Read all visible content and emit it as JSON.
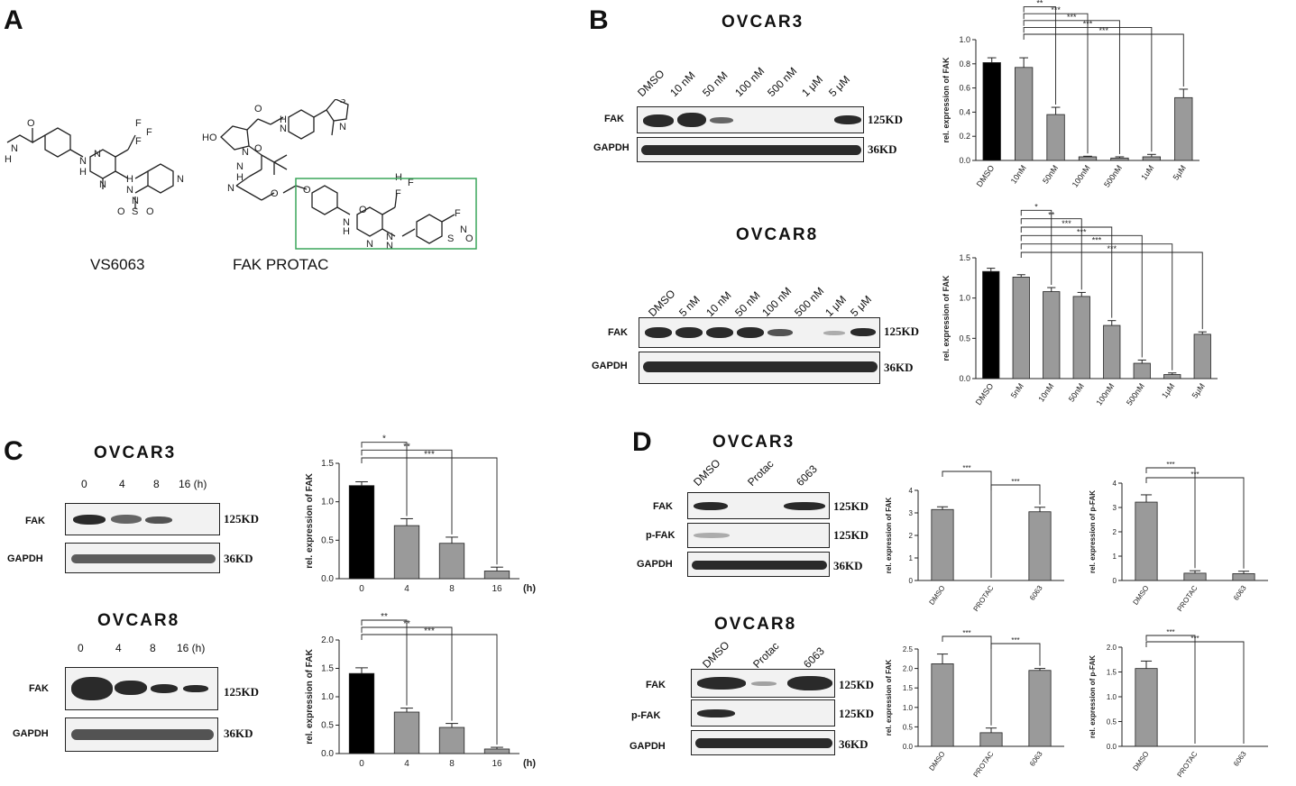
{
  "panels": {
    "A": {
      "letter": "A",
      "compounds": [
        {
          "name": "VS6063"
        },
        {
          "name": "FAK PROTAC"
        }
      ],
      "atom_labels": [
        "O",
        "N",
        "H",
        "N",
        "H",
        "N",
        "N",
        "H",
        "N",
        "F",
        "F",
        "F",
        "N",
        "N",
        "O",
        "S",
        "O",
        "HO",
        "O",
        "H",
        "N",
        "N",
        "S",
        "N",
        "N",
        "O",
        "H",
        "N",
        "O",
        "O",
        "O",
        "N",
        "N",
        "H",
        "N",
        "N",
        "H",
        "F",
        "F",
        "F",
        "N",
        "S",
        "O",
        "O"
      ]
    },
    "B": {
      "letter": "B",
      "ovcar3_title": "OVCAR3",
      "ovcar8_title": "OVCAR8",
      "ovcar3_lanes": [
        "DMSO",
        "10 nM",
        "50 nM",
        "100 nM",
        "500 nM",
        "1 μM",
        "5 μM"
      ],
      "ovcar8_lanes": [
        "DMSO",
        "5 nM",
        "10 nM",
        "50 nM",
        "100 nM",
        "500 nM",
        "1 μM",
        "5 μM"
      ],
      "rows": [
        "FAK",
        "GAPDH"
      ],
      "kd": [
        "125KD",
        "36KD"
      ]
    },
    "C": {
      "letter": "C",
      "ovcar3_title": "OVCAR3",
      "ovcar8_title": "OVCAR8",
      "lanes": [
        "0",
        "4",
        "8",
        "16 (h)"
      ],
      "rows": [
        "FAK",
        "GAPDH"
      ],
      "kd": [
        "125KD",
        "36KD"
      ]
    },
    "D": {
      "letter": "D",
      "ovcar3_title": "OVCAR3",
      "ovcar8_title": "OVCAR8",
      "lanes": [
        "DMSO",
        "Protac",
        "6063"
      ],
      "rows": [
        "FAK",
        "p-FAK",
        "GAPDH"
      ],
      "kd": [
        "125KD",
        "125KD",
        "36KD"
      ]
    }
  },
  "chart_data": [
    {
      "id": "B-ovcar3",
      "type": "bar",
      "categories": [
        "DMSO",
        "10nM",
        "50nM",
        "100nM",
        "500nM",
        "1uM",
        "5μM"
      ],
      "values": [
        0.81,
        0.77,
        0.38,
        0.03,
        0.02,
        0.03,
        0.52
      ],
      "errors": [
        0.04,
        0.08,
        0.06,
        0.005,
        0.01,
        0.02,
        0.07
      ],
      "colors": [
        "#000000",
        "#9a9a9a",
        "#9a9a9a",
        "#9a9a9a",
        "#9a9a9a",
        "#9a9a9a",
        "#9a9a9a"
      ],
      "ylabel": "rel. expression of FAK",
      "xlabel": "",
      "ylim": [
        0,
        1.0
      ],
      "yticks": [
        "0.0",
        "0.2",
        "0.4",
        "0.6",
        "0.8",
        "1.0"
      ],
      "significance": [
        [
          "**",
          1,
          2
        ],
        [
          "***",
          1,
          3
        ],
        [
          "***",
          1,
          4
        ],
        [
          "***",
          1,
          5
        ],
        [
          "***",
          1,
          6
        ]
      ],
      "xtick_rotate": true
    },
    {
      "id": "B-ovcar8",
      "type": "bar",
      "categories": [
        "DMSO",
        "5nM",
        "10nM",
        "50nM",
        "100nM",
        "500nM",
        "1μM",
        "5μM"
      ],
      "values": [
        1.33,
        1.26,
        1.08,
        1.02,
        0.66,
        0.19,
        0.05,
        0.55
      ],
      "errors": [
        0.04,
        0.03,
        0.05,
        0.05,
        0.06,
        0.04,
        0.02,
        0.03
      ],
      "colors": [
        "#000000",
        "#9a9a9a",
        "#9a9a9a",
        "#9a9a9a",
        "#9a9a9a",
        "#9a9a9a",
        "#9a9a9a",
        "#9a9a9a"
      ],
      "ylabel": "rel. expression of FAK",
      "xlabel": "",
      "ylim": [
        0,
        1.5
      ],
      "yticks": [
        "0.0",
        "0.5",
        "1.0",
        "1.5"
      ],
      "significance": [
        [
          "*",
          1,
          2
        ],
        [
          "**",
          1,
          3
        ],
        [
          "***",
          1,
          4
        ],
        [
          "***",
          1,
          5
        ],
        [
          "***",
          1,
          6
        ],
        [
          "***",
          1,
          7
        ]
      ],
      "xtick_rotate": true
    },
    {
      "id": "C-ovcar3",
      "type": "bar",
      "categories": [
        "0",
        "4",
        "8",
        "16"
      ],
      "values": [
        1.21,
        0.69,
        0.46,
        0.1
      ],
      "errors": [
        0.05,
        0.09,
        0.08,
        0.05
      ],
      "colors": [
        "#000000",
        "#9a9a9a",
        "#9a9a9a",
        "#9a9a9a"
      ],
      "ylabel": "rel. expression of FAK",
      "xlabel": "(h)",
      "ylim": [
        0,
        1.5
      ],
      "yticks": [
        "0.0",
        "0.5",
        "1.0",
        "1.5"
      ],
      "significance": [
        [
          "*",
          0,
          1
        ],
        [
          "**",
          0,
          2
        ],
        [
          "***",
          0,
          3
        ]
      ],
      "xtick_rotate": false
    },
    {
      "id": "C-ovcar8",
      "type": "bar",
      "categories": [
        "0",
        "4",
        "8",
        "16"
      ],
      "values": [
        1.41,
        0.73,
        0.46,
        0.08
      ],
      "errors": [
        0.1,
        0.07,
        0.07,
        0.03
      ],
      "colors": [
        "#000000",
        "#9a9a9a",
        "#9a9a9a",
        "#9a9a9a"
      ],
      "ylabel": "rel. expression of FAK",
      "xlabel": "(h)",
      "ylim": [
        0,
        2.0
      ],
      "yticks": [
        "0.0",
        "0.5",
        "1.0",
        "1.5",
        "2.0"
      ],
      "significance": [
        [
          "**",
          0,
          1
        ],
        [
          "**",
          0,
          2
        ],
        [
          "***",
          0,
          3
        ]
      ],
      "xtick_rotate": false
    },
    {
      "id": "D-ovcar3-fak",
      "type": "bar",
      "categories": [
        "DMSO",
        "PROTAC",
        "6063"
      ],
      "values": [
        3.15,
        0,
        3.05
      ],
      "errors": [
        0.12,
        0,
        0.2
      ],
      "colors": [
        "#9a9a9a",
        "#9a9a9a",
        "#9a9a9a"
      ],
      "ylabel": "rel. expression of FAK",
      "xlabel": "",
      "ylim": [
        0,
        4
      ],
      "yticks": [
        "0",
        "1",
        "2",
        "3",
        "4"
      ],
      "significance": [
        [
          "***",
          0,
          1
        ],
        [
          "***",
          1,
          2
        ]
      ],
      "xtick_rotate": true
    },
    {
      "id": "D-ovcar3-pfak",
      "type": "bar",
      "categories": [
        "DMSO",
        "PROTAC",
        "6063"
      ],
      "values": [
        3.22,
        0.3,
        0.28
      ],
      "errors": [
        0.3,
        0.1,
        0.1
      ],
      "colors": [
        "#9a9a9a",
        "#9a9a9a",
        "#9a9a9a"
      ],
      "ylabel": "rel. expression of p-FAK",
      "xlabel": "",
      "ylim": [
        0,
        4
      ],
      "yticks": [
        "0",
        "1",
        "2",
        "3",
        "4"
      ],
      "significance": [
        [
          "***",
          0,
          1
        ],
        [
          "***",
          0,
          2
        ]
      ],
      "xtick_rotate": true
    },
    {
      "id": "D-ovcar8-fak",
      "type": "bar",
      "categories": [
        "DMSO",
        "PROTAC",
        "6063"
      ],
      "values": [
        2.12,
        0.35,
        1.95
      ],
      "errors": [
        0.25,
        0.12,
        0.05
      ],
      "colors": [
        "#9a9a9a",
        "#9a9a9a",
        "#9a9a9a"
      ],
      "ylabel": "rel. expression of FAK",
      "xlabel": "",
      "ylim": [
        0,
        2.5
      ],
      "yticks": [
        "0.0",
        "0.5",
        "1.0",
        "1.5",
        "2.0",
        "2.5"
      ],
      "significance": [
        [
          "***",
          0,
          1
        ],
        [
          "***",
          1,
          2
        ]
      ],
      "xtick_rotate": true
    },
    {
      "id": "D-ovcar8-pfak",
      "type": "bar",
      "categories": [
        "DMSO",
        "PROTAC",
        "6063"
      ],
      "values": [
        1.57,
        0,
        0
      ],
      "errors": [
        0.15,
        0,
        0
      ],
      "colors": [
        "#9a9a9a",
        "#9a9a9a",
        "#9a9a9a"
      ],
      "ylabel": "rel. expression of p-FAK",
      "xlabel": "",
      "ylim": [
        0,
        2.0
      ],
      "yticks": [
        "0.0",
        "0.5",
        "1.0",
        "1.5",
        "2.0"
      ],
      "significance": [
        [
          "***",
          0,
          1
        ],
        [
          "***",
          0,
          2
        ]
      ],
      "xtick_rotate": true
    }
  ]
}
